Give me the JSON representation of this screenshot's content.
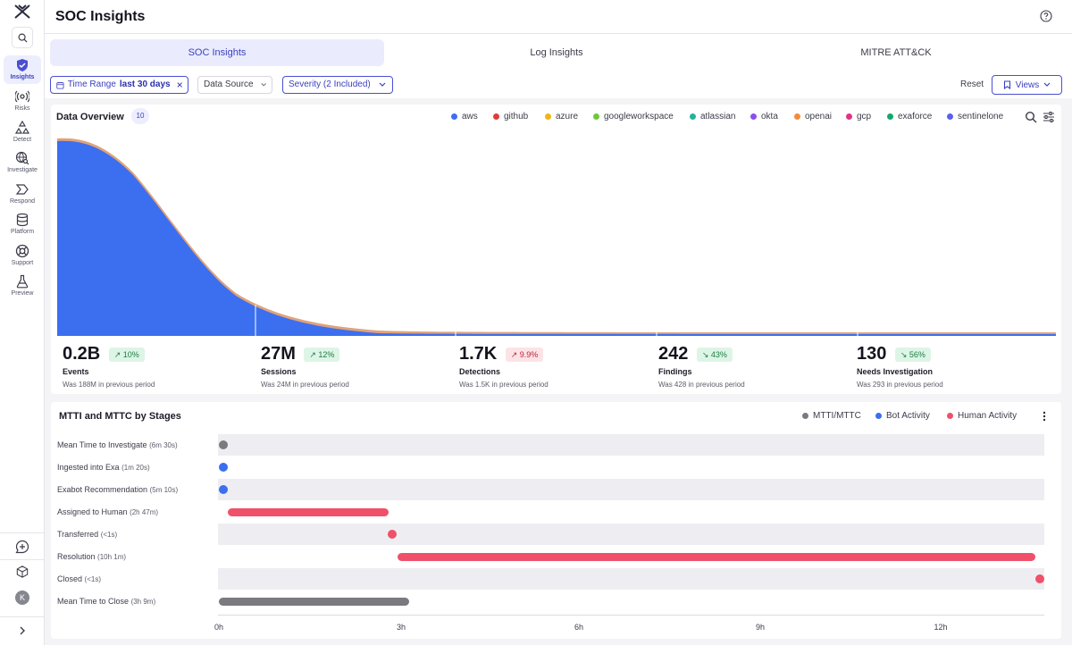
{
  "app": {
    "title": "SOC Insights",
    "user_initial": "K"
  },
  "sidebar": {
    "items": [
      {
        "label": "Insights",
        "icon": "shield-check-icon",
        "active": true
      },
      {
        "label": "Risks",
        "icon": "radar-icon"
      },
      {
        "label": "Detect",
        "icon": "nodes-icon"
      },
      {
        "label": "Investigate",
        "icon": "globe-search-icon"
      },
      {
        "label": "Respond",
        "icon": "chevron-badge-icon"
      },
      {
        "label": "Platform",
        "icon": "database-icon"
      },
      {
        "label": "Support",
        "icon": "lifebuoy-icon"
      },
      {
        "label": "Preview",
        "icon": "flask-icon"
      }
    ]
  },
  "tabs": [
    {
      "label": "SOC Insights",
      "active": true
    },
    {
      "label": "Log Insights"
    },
    {
      "label": "MITRE ATT&CK"
    }
  ],
  "filters": {
    "time_range_label": "Time Range",
    "time_range_value": "last 30 days",
    "data_source": "Data Source",
    "severity": "Severity (2 Included)",
    "reset": "Reset",
    "views": "Views"
  },
  "overview": {
    "title": "Data Overview",
    "count": "10",
    "legend": [
      {
        "name": "aws",
        "color": "#3b6ff0"
      },
      {
        "name": "github",
        "color": "#e03c3c"
      },
      {
        "name": "azure",
        "color": "#f2b415"
      },
      {
        "name": "googleworkspace",
        "color": "#6cc93a"
      },
      {
        "name": "atlassian",
        "color": "#20b59a"
      },
      {
        "name": "okta",
        "color": "#8b4ff0"
      },
      {
        "name": "openai",
        "color": "#f08c3a"
      },
      {
        "name": "gcp",
        "color": "#e0338a"
      },
      {
        "name": "exaforce",
        "color": "#14a86a"
      },
      {
        "name": "sentinelone",
        "color": "#5a5ff0"
      }
    ],
    "stats": [
      {
        "value": "0.2B",
        "change": "10%",
        "label": "Events",
        "prev": "Was 188M in previous period"
      },
      {
        "value": "27M",
        "change": "12%",
        "label": "Sessions",
        "prev": "Was 24M in previous period"
      },
      {
        "value": "1.7K",
        "change": "9.9%",
        "label": "Detections",
        "prev": "Was 1.5K in previous period"
      },
      {
        "value": "242",
        "change": "43%",
        "label": "Findings",
        "prev": "Was 428 in previous period"
      },
      {
        "value": "130",
        "change": "56%",
        "label": "Needs Investigation",
        "prev": "Was 293 in previous period"
      }
    ]
  },
  "mtti": {
    "title": "MTTI and MTTC by Stages",
    "legend": [
      {
        "name": "MTTI/MTTC",
        "color": "#7a7a80"
      },
      {
        "name": "Bot Activity",
        "color": "#3b6ff0"
      },
      {
        "name": "Human Activity",
        "color": "#f0506a"
      }
    ],
    "rows": [
      {
        "label": "Mean Time to Investigate",
        "dur": "(6m 30s)"
      },
      {
        "label": "Ingested into Exa",
        "dur": "(1m 20s)"
      },
      {
        "label": "Exabot Recommendation",
        "dur": "(5m 10s)"
      },
      {
        "label": "Assigned to Human",
        "dur": "(2h 47m)"
      },
      {
        "label": "Transferred",
        "dur": "(<1s)"
      },
      {
        "label": "Resolution",
        "dur": "(10h 1m)"
      },
      {
        "label": "Closed",
        "dur": "(<1s)"
      },
      {
        "label": "Mean Time to Close",
        "dur": "(3h 9m)"
      }
    ],
    "ticks": [
      "0h",
      "3h",
      "6h",
      "9h",
      "12h"
    ]
  }
}
